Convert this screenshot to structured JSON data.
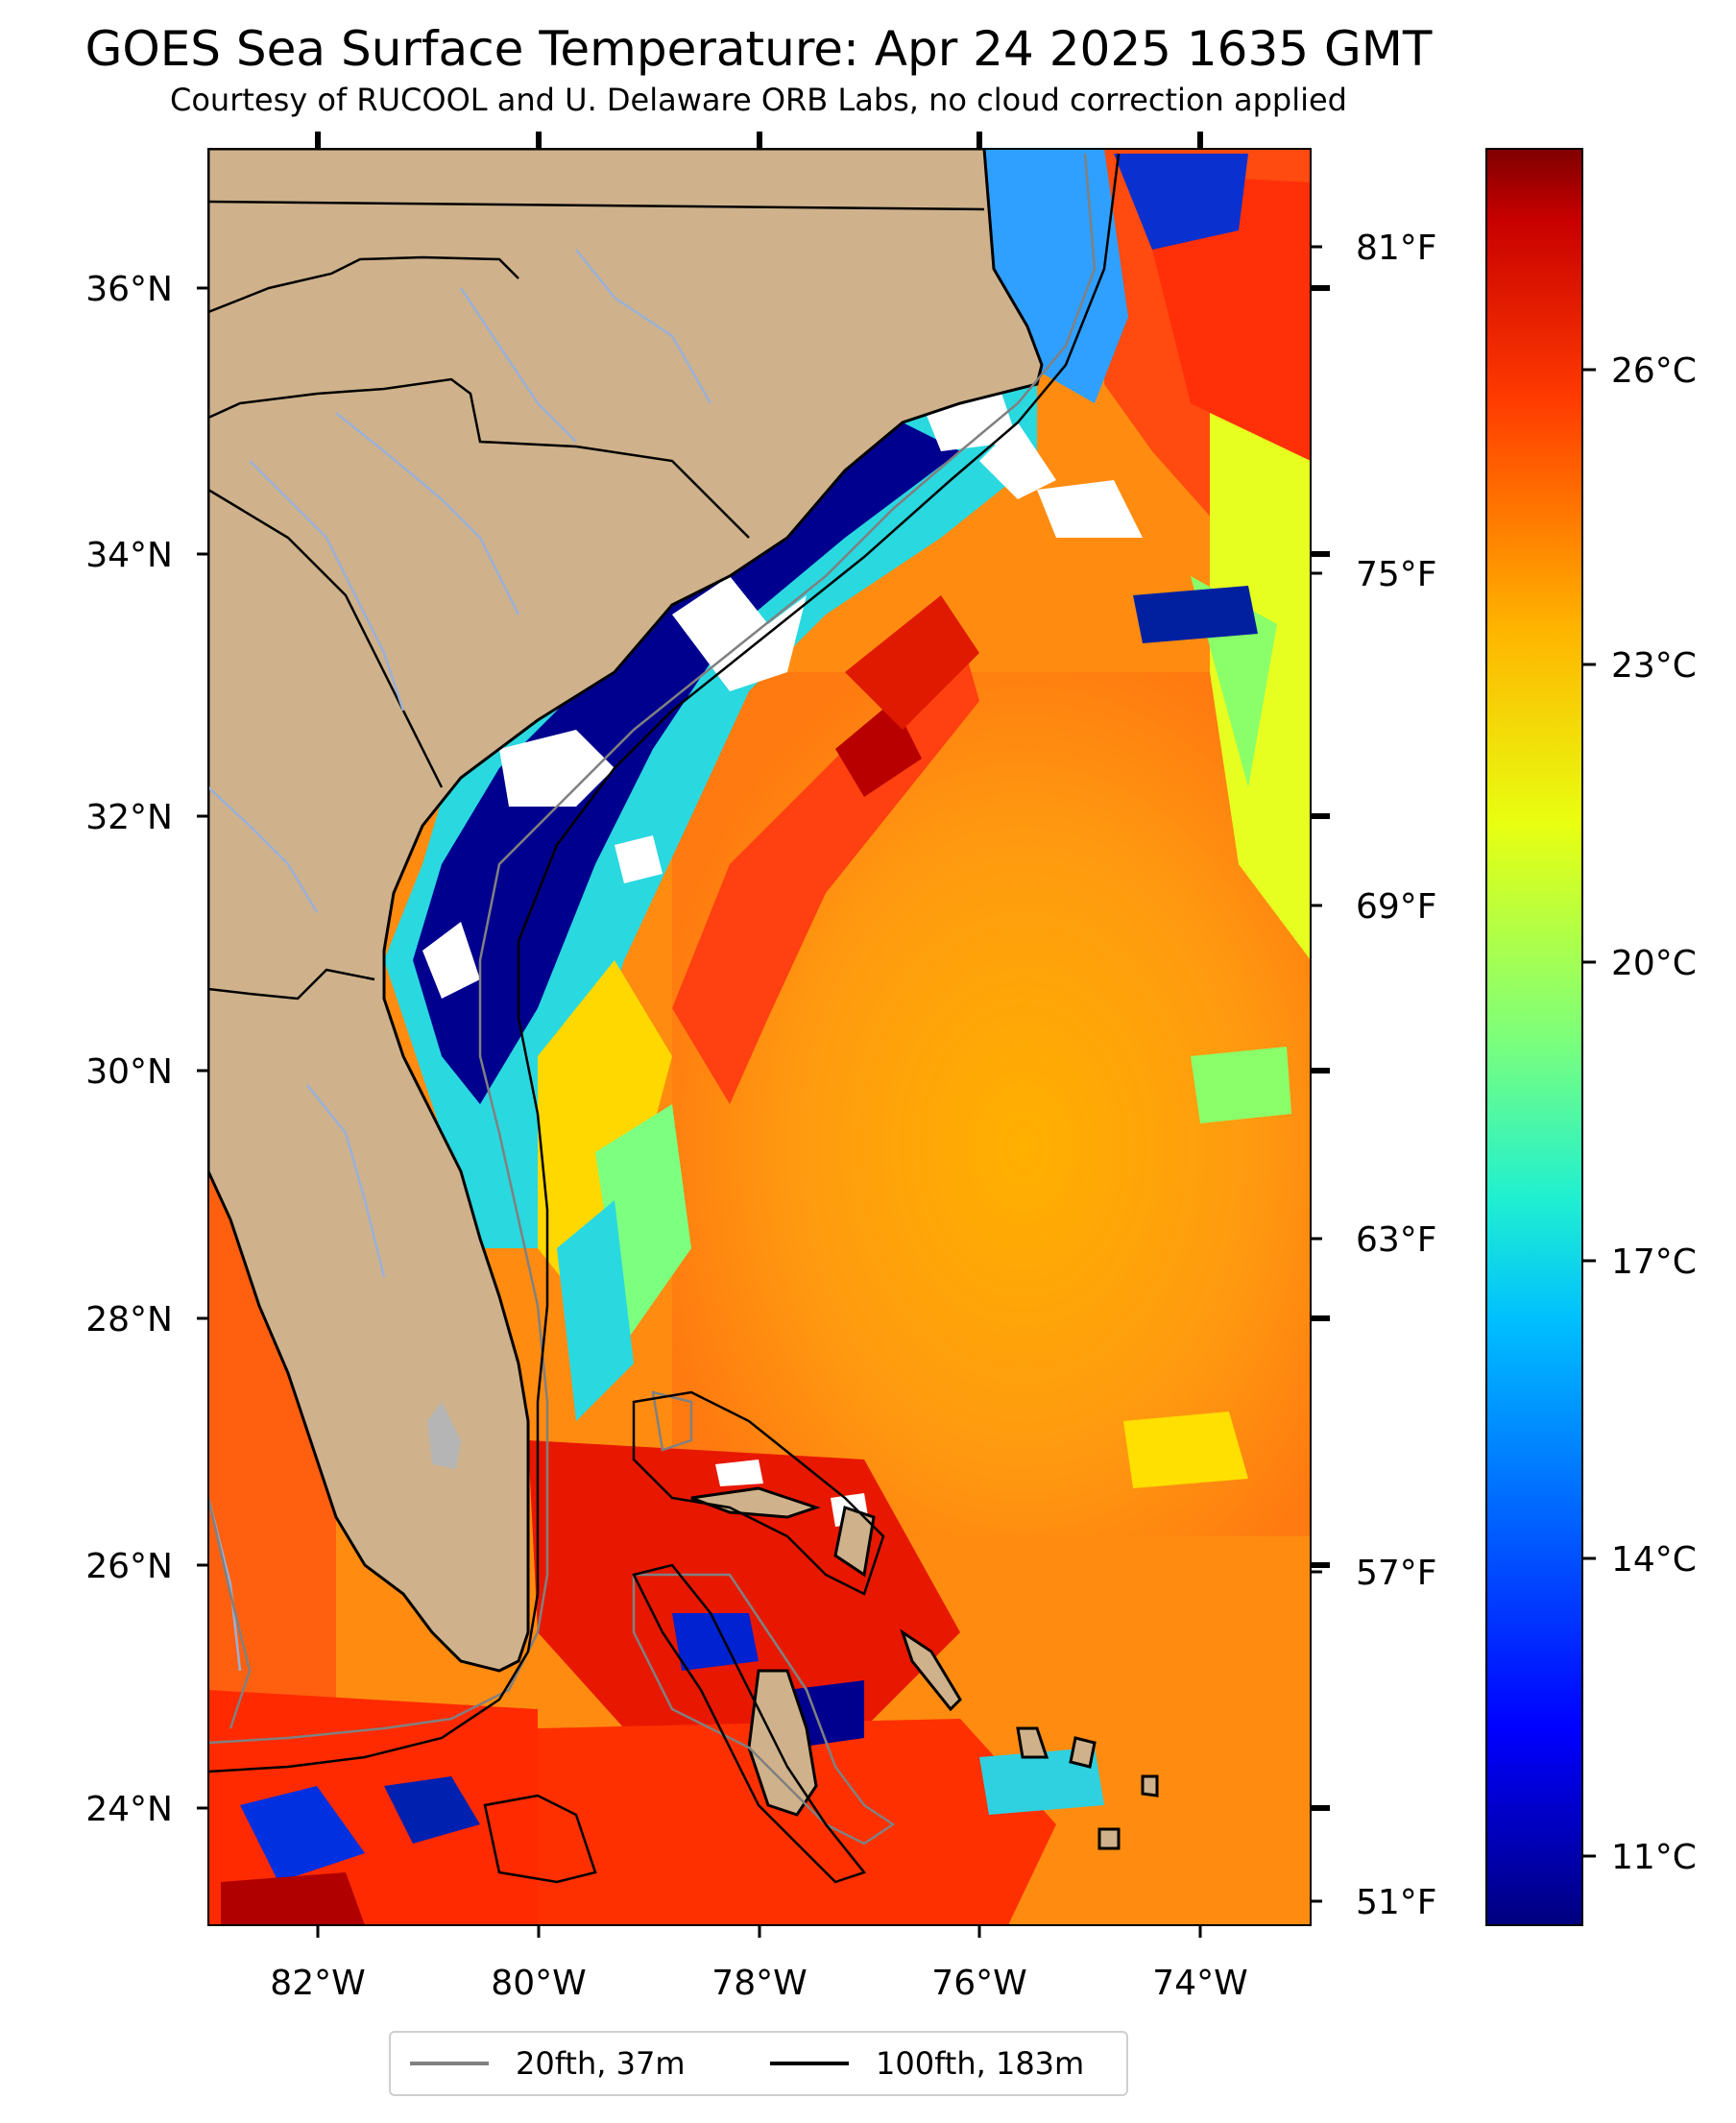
{
  "header": {
    "title": "GOES Sea Surface Temperature: Apr 24 2025 1635 GMT",
    "subtitle": "Courtesy of RUCOOL and U. Delaware ORB Labs, no cloud correction applied"
  },
  "map": {
    "region": "US Southeast Atlantic coast, Florida, Bahamas",
    "lat_labels": [
      "24°N",
      "26°N",
      "28°N",
      "30°N",
      "32°N",
      "34°N",
      "36°N"
    ],
    "lon_labels": [
      "82°W",
      "80°W",
      "78°W",
      "76°W",
      "74°W"
    ],
    "fahrenheit_labels": [
      "51°F",
      "57°F",
      "63°F",
      "69°F",
      "75°F",
      "81°F"
    ],
    "colors": {
      "land": "#cfb28b",
      "cloud_mask": "#ffffff",
      "contour_20fth": "#808080",
      "contour_100fth": "#000000"
    }
  },
  "colorbar": {
    "celsius_labels": [
      "11°C",
      "14°C",
      "17°C",
      "20°C",
      "23°C",
      "26°C"
    ],
    "colormap": "jet"
  },
  "legend": {
    "items": [
      {
        "label": "20fth, 37m",
        "color": "#808080"
      },
      {
        "label": "100fth, 183m",
        "color": "#000000"
      }
    ]
  }
}
